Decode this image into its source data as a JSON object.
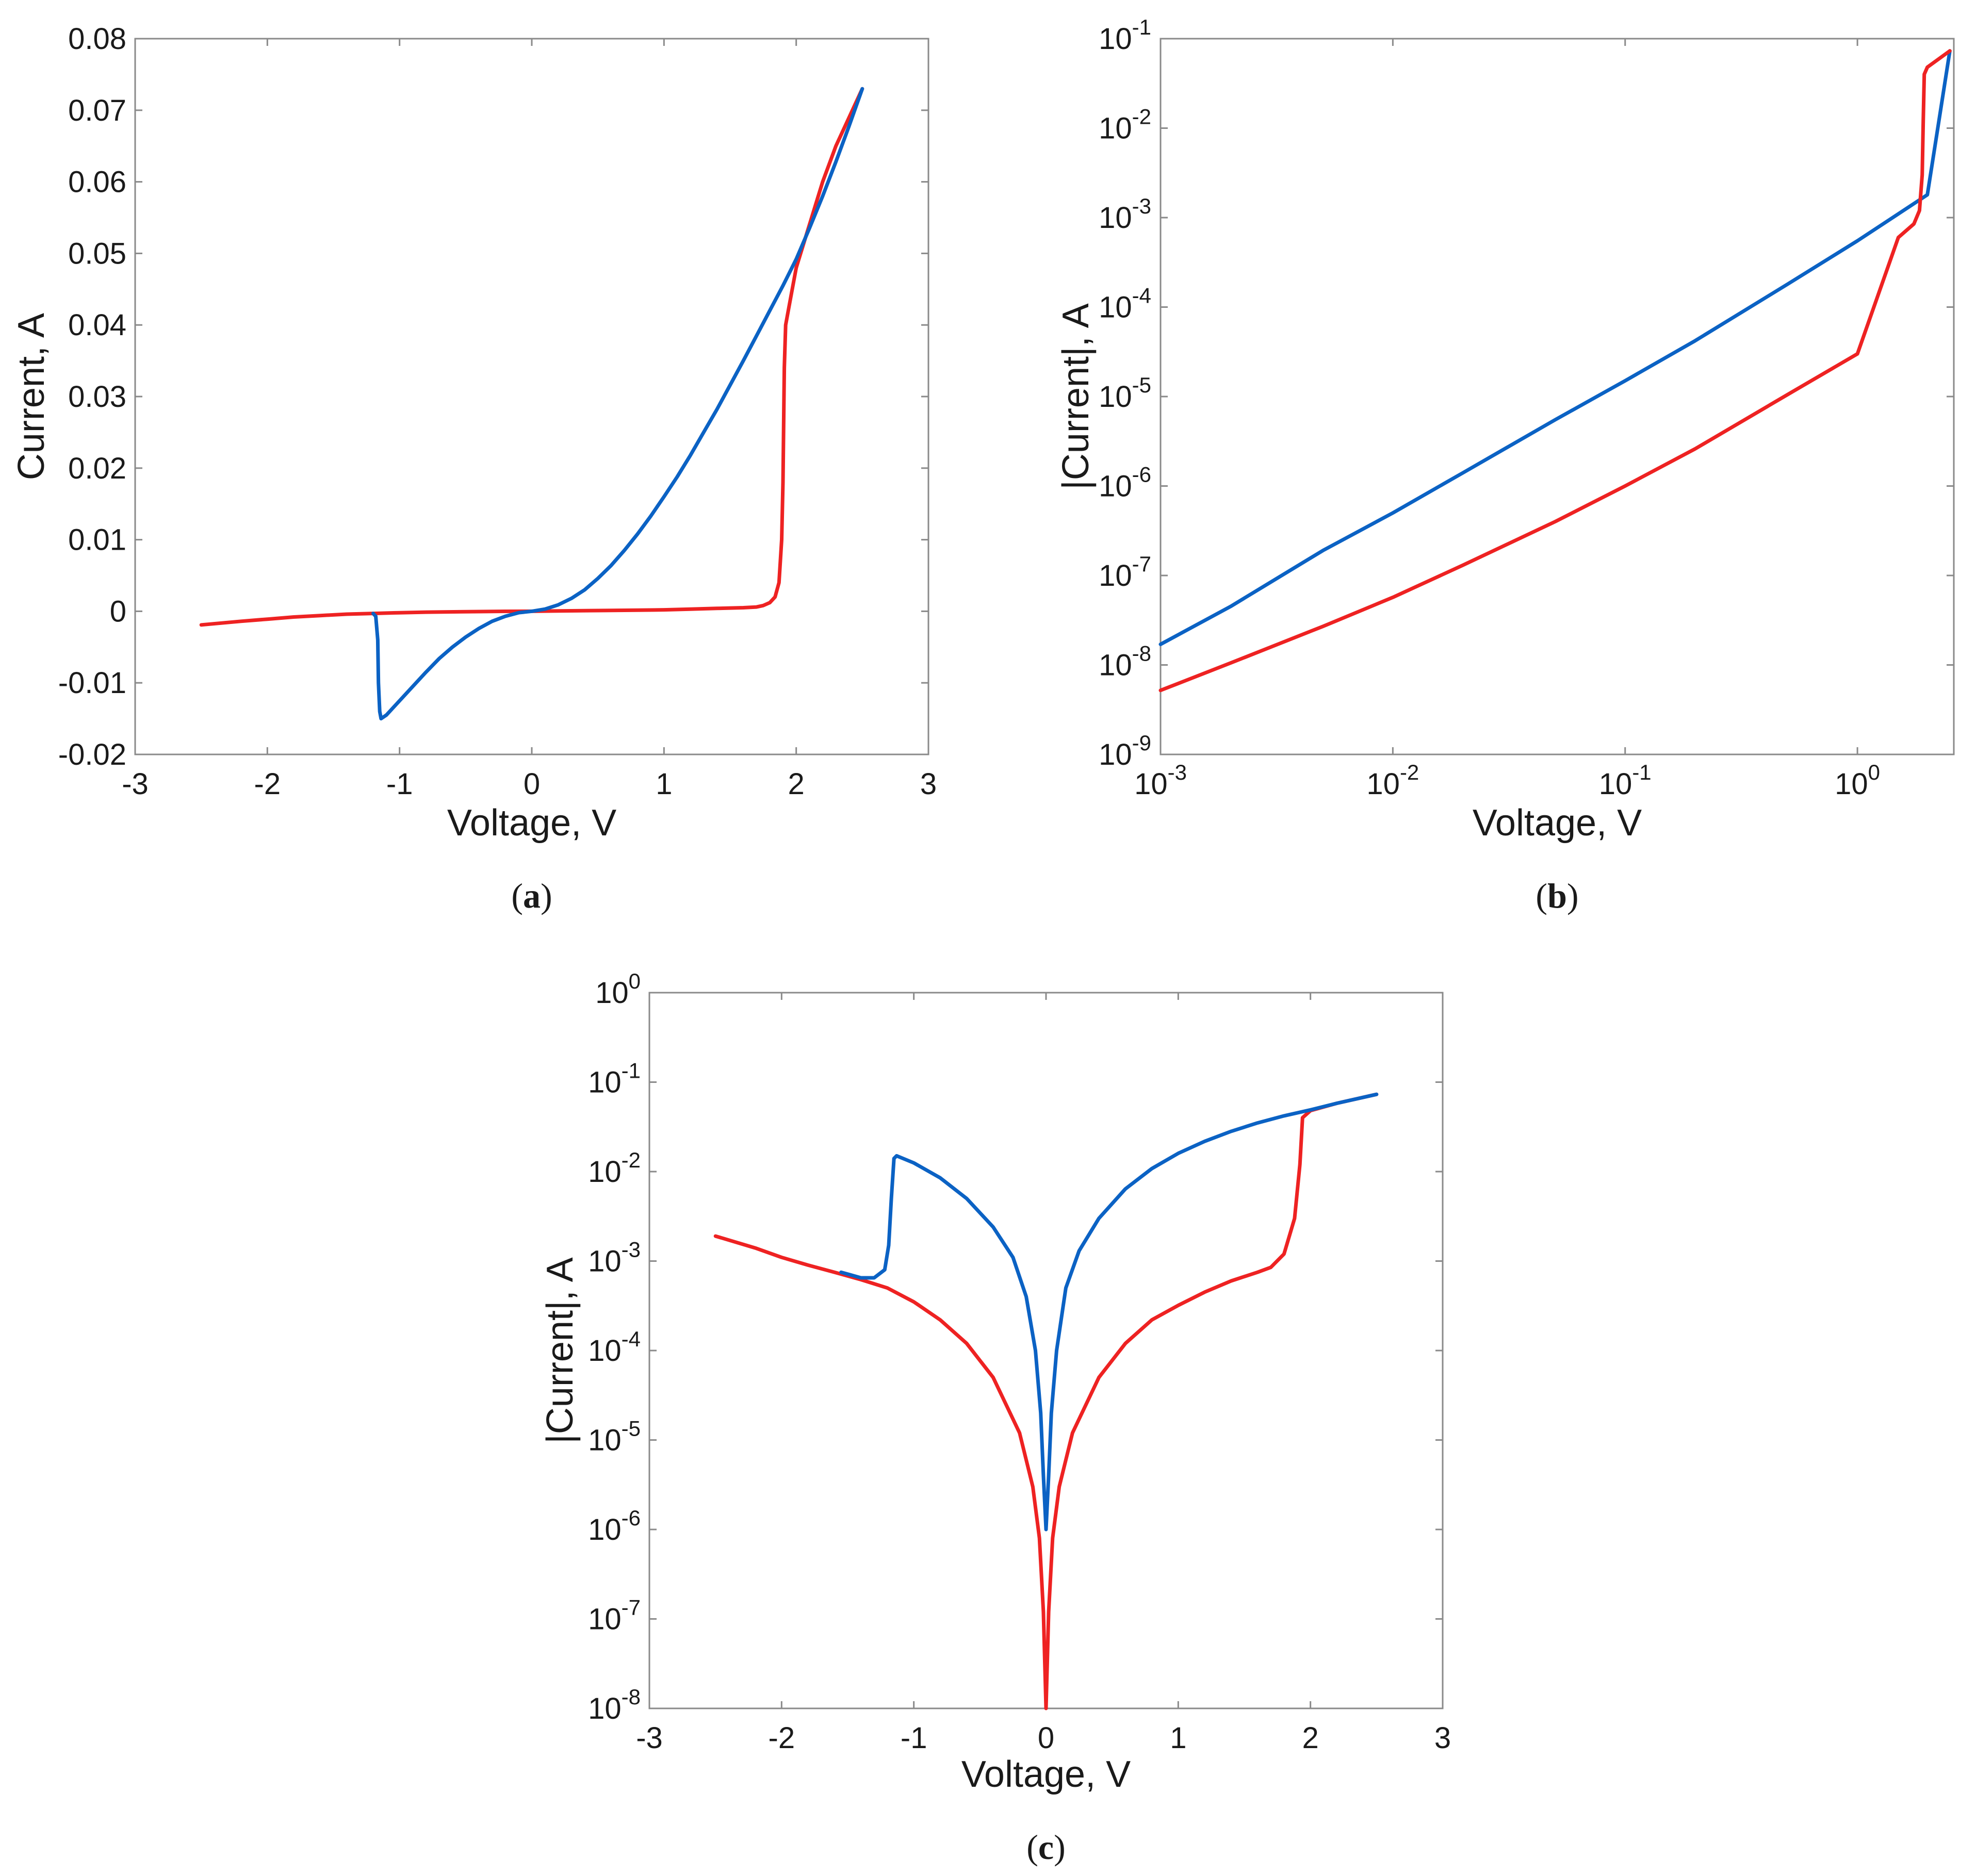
{
  "colors": {
    "red": "#ee2222",
    "blue": "#0b62c4"
  },
  "chart_data": [
    {
      "id": "a",
      "type": "line",
      "caption": "a",
      "xlabel": "Voltage, V",
      "ylabel": "Current, A",
      "xscale": "linear",
      "yscale": "linear",
      "xlim": [
        -3,
        3
      ],
      "ylim": [
        -0.02,
        0.08
      ],
      "xticks": [
        -3,
        -2,
        -1,
        0,
        1,
        2,
        3
      ],
      "xtick_labels": [
        "-3",
        "-2",
        "-1",
        "0",
        "1",
        "2",
        "3"
      ],
      "yticks": [
        -0.02,
        -0.01,
        0,
        0.01,
        0.02,
        0.03,
        0.04,
        0.05,
        0.06,
        0.07,
        0.08
      ],
      "ytick_labels": [
        "-0.02",
        "-0.01",
        "0",
        "0.01",
        "0.02",
        "0.03",
        "0.04",
        "0.05",
        "0.06",
        "0.07",
        "0.08"
      ],
      "series": [
        {
          "name": "red",
          "color": "red",
          "points": [
            [
              -2.5,
              -0.0019
            ],
            [
              -2.2,
              -0.0014
            ],
            [
              -2.0,
              -0.0011
            ],
            [
              -1.8,
              -0.0008
            ],
            [
              -1.6,
              -0.0006
            ],
            [
              -1.4,
              -0.0004
            ],
            [
              -1.2,
              -0.0003
            ],
            [
              -1.0,
              -0.0002
            ],
            [
              -0.8,
              -0.00012
            ],
            [
              -0.5,
              -6e-05
            ],
            [
              -0.2,
              -1e-05
            ],
            [
              0,
              0
            ],
            [
              0.2,
              5e-05
            ],
            [
              0.5,
              0.0001
            ],
            [
              0.8,
              0.00015
            ],
            [
              1.0,
              0.0002
            ],
            [
              1.2,
              0.0003
            ],
            [
              1.4,
              0.0004
            ],
            [
              1.6,
              0.0005
            ],
            [
              1.7,
              0.0006
            ],
            [
              1.75,
              0.0008
            ],
            [
              1.8,
              0.0012
            ],
            [
              1.84,
              0.002
            ],
            [
              1.87,
              0.004
            ],
            [
              1.89,
              0.01
            ],
            [
              1.9,
              0.018
            ],
            [
              1.905,
              0.026
            ],
            [
              1.91,
              0.034
            ],
            [
              1.92,
              0.04
            ],
            [
              1.94,
              0.042
            ],
            [
              1.97,
              0.045
            ],
            [
              2.0,
              0.048
            ],
            [
              2.1,
              0.054
            ],
            [
              2.2,
              0.06
            ],
            [
              2.3,
              0.065
            ],
            [
              2.4,
              0.069
            ],
            [
              2.5,
              0.073
            ]
          ]
        },
        {
          "name": "blue",
          "color": "blue",
          "points": [
            [
              -1.2,
              -0.0003
            ],
            [
              -1.18,
              -0.0007
            ],
            [
              -1.165,
              -0.004
            ],
            [
              -1.16,
              -0.01
            ],
            [
              -1.15,
              -0.014
            ],
            [
              -1.14,
              -0.015
            ],
            [
              -1.1,
              -0.0145
            ],
            [
              -1.0,
              -0.0125
            ],
            [
              -0.9,
              -0.0105
            ],
            [
              -0.8,
              -0.0085
            ],
            [
              -0.7,
              -0.0066
            ],
            [
              -0.6,
              -0.005
            ],
            [
              -0.5,
              -0.0036
            ],
            [
              -0.4,
              -0.0024
            ],
            [
              -0.3,
              -0.0014
            ],
            [
              -0.2,
              -0.0007
            ],
            [
              -0.1,
              -0.0002
            ],
            [
              0,
              0
            ],
            [
              0.1,
              0.0003
            ],
            [
              0.2,
              0.0009
            ],
            [
              0.3,
              0.0018
            ],
            [
              0.4,
              0.003
            ],
            [
              0.5,
              0.0046
            ],
            [
              0.6,
              0.0064
            ],
            [
              0.7,
              0.0085
            ],
            [
              0.8,
              0.0108
            ],
            [
              0.9,
              0.0133
            ],
            [
              1.0,
              0.016
            ],
            [
              1.1,
              0.0188
            ],
            [
              1.2,
              0.0218
            ],
            [
              1.3,
              0.025
            ],
            [
              1.4,
              0.0282
            ],
            [
              1.5,
              0.0316
            ],
            [
              1.6,
              0.035
            ],
            [
              1.7,
              0.0385
            ],
            [
              1.8,
              0.042
            ],
            [
              1.9,
              0.0455
            ],
            [
              2.0,
              0.0492
            ],
            [
              2.1,
              0.0535
            ],
            [
              2.2,
              0.058
            ],
            [
              2.3,
              0.0628
            ],
            [
              2.4,
              0.0678
            ],
            [
              2.5,
              0.073
            ]
          ]
        }
      ]
    },
    {
      "id": "b",
      "type": "line",
      "caption": "b",
      "xlabel": "Voltage, V",
      "ylabel": "|Current|, A",
      "xscale": "log",
      "yscale": "log",
      "xlim": [
        0.001,
        2.6
      ],
      "ylim": [
        1e-09,
        0.1
      ],
      "xticks": [
        0.001,
        0.01,
        0.1,
        1
      ],
      "xtick_labels": [
        {
          "base": "10",
          "exp": "-3"
        },
        {
          "base": "10",
          "exp": "-2"
        },
        {
          "base": "10",
          "exp": "-1"
        },
        {
          "base": "10",
          "exp": "0"
        }
      ],
      "yticks": [
        1e-09,
        1e-08,
        1e-07,
        1e-06,
        1e-05,
        0.0001,
        0.001,
        0.01,
        0.1
      ],
      "ytick_labels": [
        {
          "base": "10",
          "exp": "-9"
        },
        {
          "base": "10",
          "exp": "-8"
        },
        {
          "base": "10",
          "exp": "-7"
        },
        {
          "base": "10",
          "exp": "-6"
        },
        {
          "base": "10",
          "exp": "-5"
        },
        {
          "base": "10",
          "exp": "-4"
        },
        {
          "base": "10",
          "exp": "-3"
        },
        {
          "base": "10",
          "exp": "-2"
        },
        {
          "base": "10",
          "exp": "-1"
        }
      ],
      "series": [
        {
          "name": "blue",
          "color": "blue",
          "points": [
            [
              0.001,
              1.7e-08
            ],
            [
              0.002,
              4.5e-08
            ],
            [
              0.005,
              1.9e-07
            ],
            [
              0.01,
              5e-07
            ],
            [
              0.02,
              1.4e-06
            ],
            [
              0.05,
              5.5e-06
            ],
            [
              0.1,
              1.5e-05
            ],
            [
              0.2,
              4.2e-05
            ],
            [
              0.5,
              0.00018
            ],
            [
              1.0,
              0.00055
            ],
            [
              1.5,
              0.0011
            ],
            [
              2.0,
              0.0018
            ],
            [
              2.5,
              0.073
            ]
          ]
        },
        {
          "name": "red",
          "color": "red",
          "points": [
            [
              0.001,
              5.2e-09
            ],
            [
              0.002,
              1.05e-08
            ],
            [
              0.005,
              2.7e-08
            ],
            [
              0.01,
              5.7e-08
            ],
            [
              0.02,
              1.3e-07
            ],
            [
              0.05,
              4e-07
            ],
            [
              0.1,
              1e-06
            ],
            [
              0.2,
              2.6e-06
            ],
            [
              0.5,
              1.05e-05
            ],
            [
              1.0,
              3e-05
            ],
            [
              1.5,
              0.0006
            ],
            [
              1.75,
              0.00085
            ],
            [
              1.85,
              0.0012
            ],
            [
              1.9,
              0.003
            ],
            [
              1.92,
              0.012
            ],
            [
              1.94,
              0.04
            ],
            [
              2.0,
              0.048
            ],
            [
              2.5,
              0.073
            ]
          ]
        }
      ]
    },
    {
      "id": "c",
      "type": "line",
      "caption": "c",
      "xlabel": "Voltage, V",
      "ylabel": "|Current|, A",
      "xscale": "linear",
      "yscale": "log",
      "xlim": [
        -3,
        3
      ],
      "ylim": [
        1e-08,
        1
      ],
      "xticks": [
        -3,
        -2,
        -1,
        0,
        1,
        2,
        3
      ],
      "xtick_labels": [
        "-3",
        "-2",
        "-1",
        "0",
        "1",
        "2",
        "3"
      ],
      "yticks": [
        1e-08,
        1e-07,
        1e-06,
        1e-05,
        0.0001,
        0.001,
        0.01,
        0.1,
        1
      ],
      "ytick_labels": [
        {
          "base": "10",
          "exp": "-8"
        },
        {
          "base": "10",
          "exp": "-7"
        },
        {
          "base": "10",
          "exp": "-6"
        },
        {
          "base": "10",
          "exp": "-5"
        },
        {
          "base": "10",
          "exp": "-4"
        },
        {
          "base": "10",
          "exp": "-3"
        },
        {
          "base": "10",
          "exp": "-2"
        },
        {
          "base": "10",
          "exp": "-1"
        },
        {
          "base": "10",
          "exp": "0"
        }
      ],
      "series": [
        {
          "name": "red",
          "color": "red",
          "points": [
            [
              -2.5,
              0.0019
            ],
            [
              -2.2,
              0.0014
            ],
            [
              -2.0,
              0.0011
            ],
            [
              -1.8,
              0.0009
            ],
            [
              -1.6,
              0.00075
            ],
            [
              -1.4,
              0.00062
            ],
            [
              -1.2,
              0.0005
            ],
            [
              -1.0,
              0.00035
            ],
            [
              -0.8,
              0.00022
            ],
            [
              -0.6,
              0.00012
            ],
            [
              -0.4,
              5e-05
            ],
            [
              -0.2,
              1.2e-05
            ],
            [
              -0.1,
              3e-06
            ],
            [
              -0.05,
              8e-07
            ],
            [
              -0.02,
              1.2e-07
            ],
            [
              0,
              1e-08
            ],
            [
              0.02,
              1.2e-07
            ],
            [
              0.05,
              8e-07
            ],
            [
              0.1,
              3e-06
            ],
            [
              0.2,
              1.2e-05
            ],
            [
              0.4,
              5e-05
            ],
            [
              0.6,
              0.00012
            ],
            [
              0.8,
              0.00022
            ],
            [
              1.0,
              0.00032
            ],
            [
              1.2,
              0.00045
            ],
            [
              1.4,
              0.0006
            ],
            [
              1.6,
              0.00075
            ],
            [
              1.7,
              0.00085
            ],
            [
              1.8,
              0.0012
            ],
            [
              1.88,
              0.003
            ],
            [
              1.92,
              0.012
            ],
            [
              1.94,
              0.04
            ],
            [
              2.0,
              0.048
            ],
            [
              2.2,
              0.058
            ],
            [
              2.5,
              0.073
            ]
          ]
        },
        {
          "name": "blue",
          "color": "blue",
          "points": [
            [
              -1.55,
              0.00075
            ],
            [
              -1.4,
              0.00065
            ],
            [
              -1.3,
              0.00065
            ],
            [
              -1.22,
              0.0008
            ],
            [
              -1.19,
              0.0015
            ],
            [
              -1.17,
              0.005
            ],
            [
              -1.15,
              0.014
            ],
            [
              -1.13,
              0.015
            ],
            [
              -1.0,
              0.0125
            ],
            [
              -0.8,
              0.0085
            ],
            [
              -0.6,
              0.005
            ],
            [
              -0.4,
              0.0024
            ],
            [
              -0.25,
              0.0011
            ],
            [
              -0.15,
              0.0004
            ],
            [
              -0.08,
              0.0001
            ],
            [
              -0.04,
              2e-05
            ],
            [
              -0.02,
              4e-06
            ],
            [
              0,
              1e-06
            ],
            [
              0.02,
              4e-06
            ],
            [
              0.04,
              2e-05
            ],
            [
              0.08,
              0.0001
            ],
            [
              0.15,
              0.0005
            ],
            [
              0.25,
              0.0013
            ],
            [
              0.4,
              0.003
            ],
            [
              0.6,
              0.0064
            ],
            [
              0.8,
              0.0108
            ],
            [
              1.0,
              0.016
            ],
            [
              1.2,
              0.0218
            ],
            [
              1.4,
              0.0282
            ],
            [
              1.6,
              0.035
            ],
            [
              1.8,
              0.042
            ],
            [
              2.0,
              0.049
            ],
            [
              2.2,
              0.058
            ],
            [
              2.5,
              0.073
            ]
          ]
        }
      ]
    }
  ]
}
